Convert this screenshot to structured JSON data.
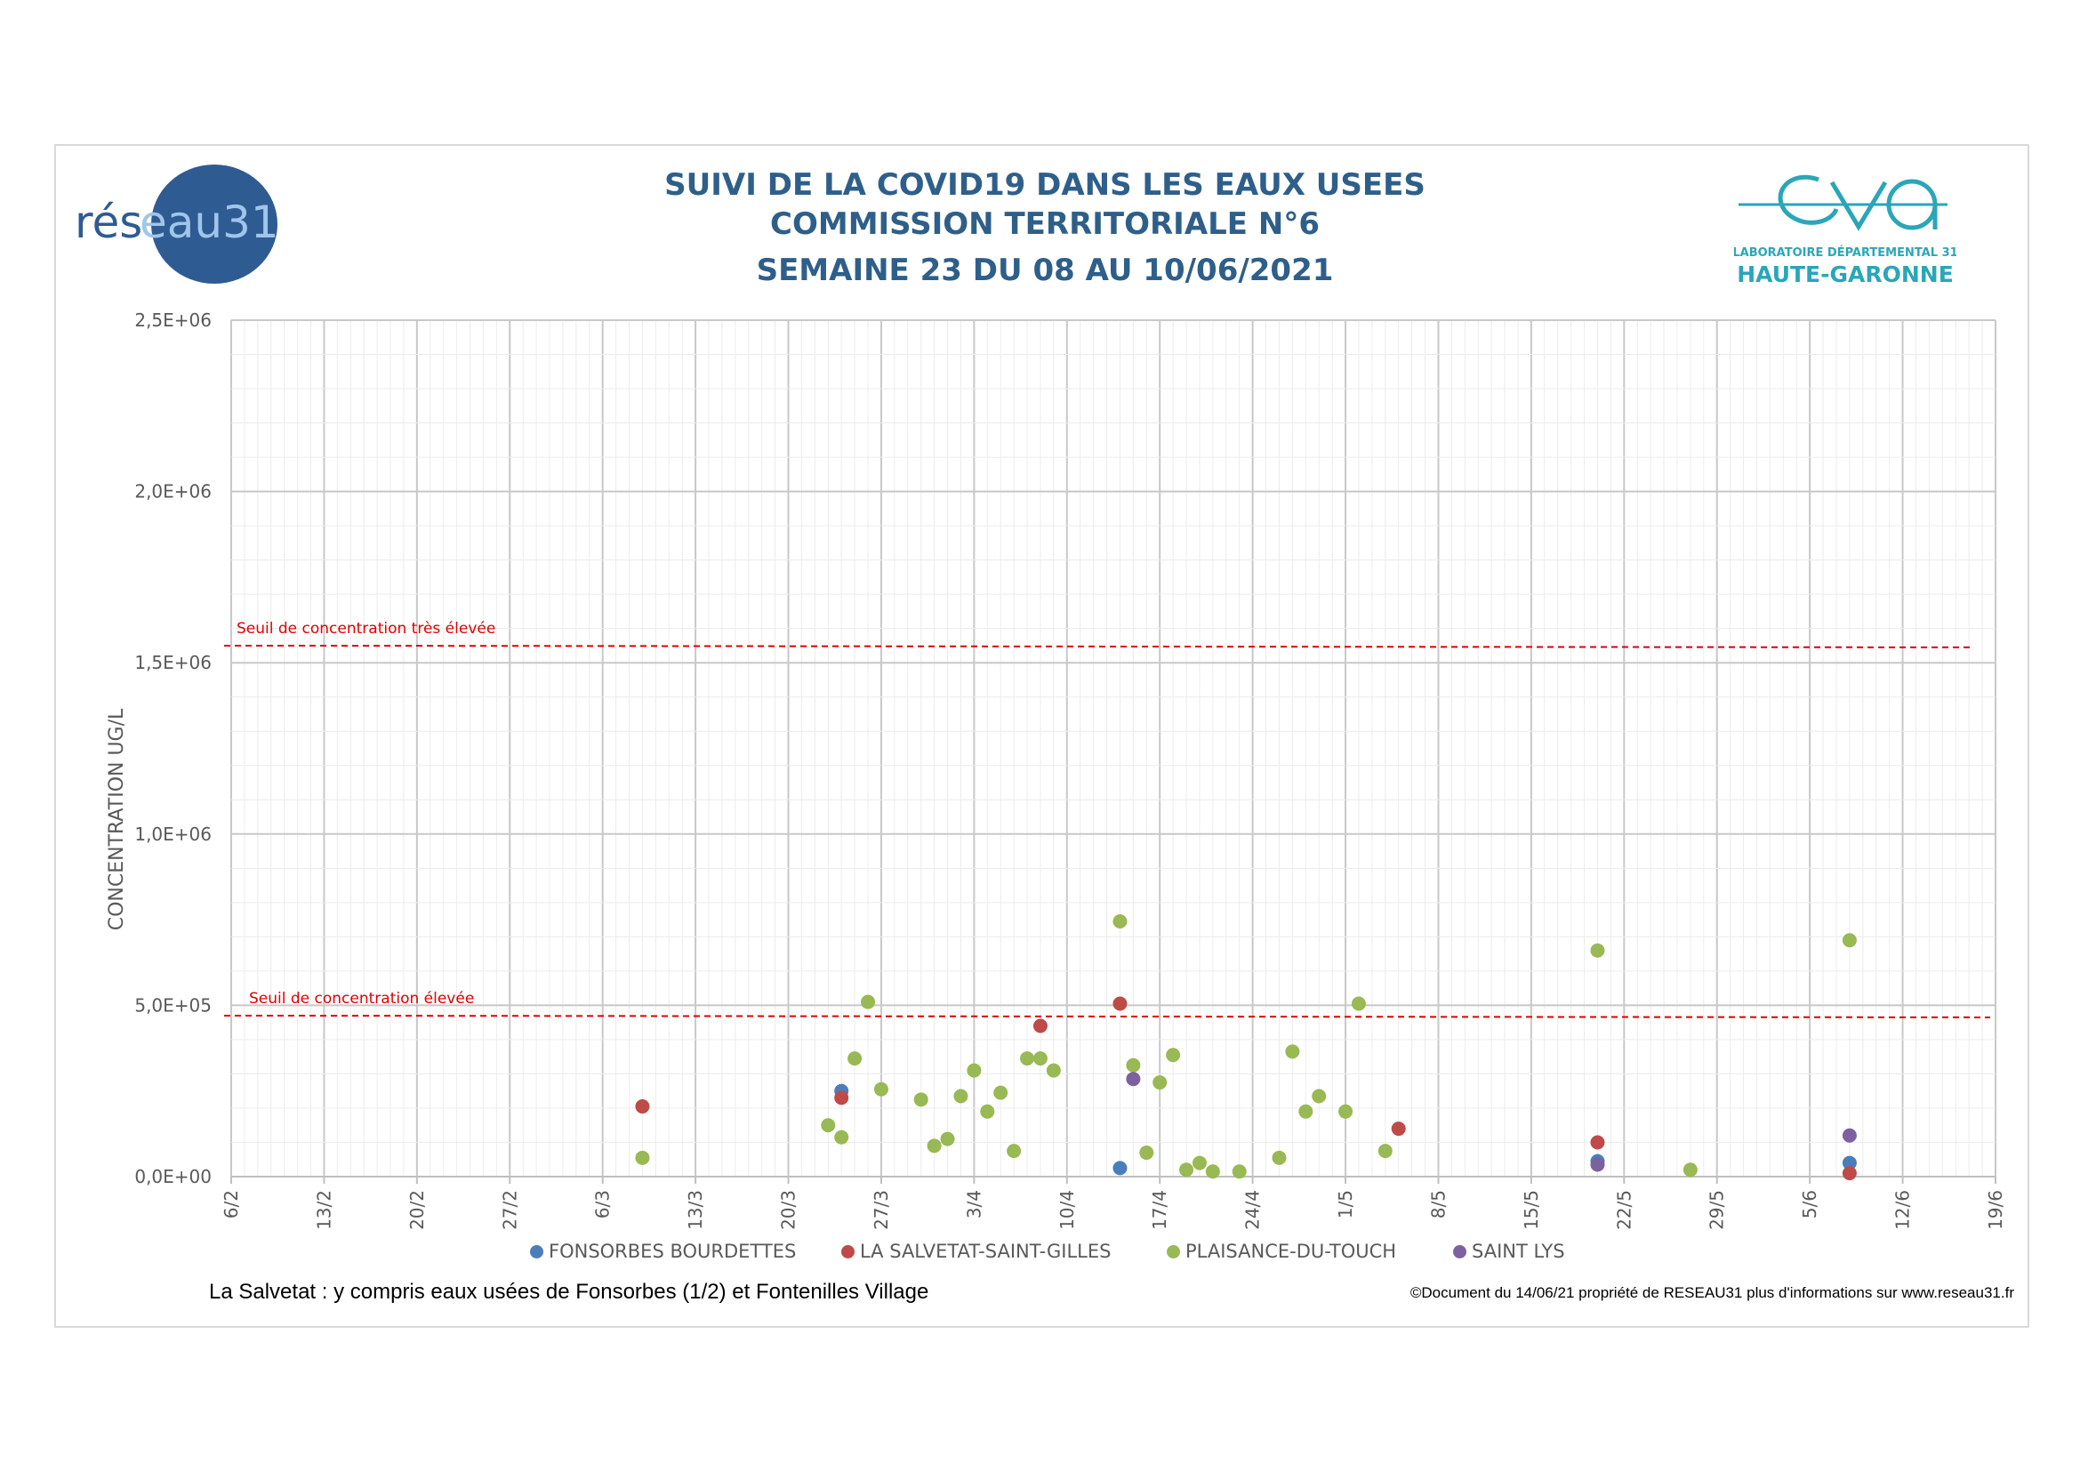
{
  "header": {
    "title_line1": "SUIVI DE LA COVID19 DANS LES EAUX USEES",
    "title_line2": "COMMISSION TERRITORIALE N°6",
    "title_line3": "SEMAINE 23 DU 08 AU 10/06/2021"
  },
  "logos": {
    "left_text_a": "rés",
    "left_text_b": "eau31",
    "right_line1": "LABORATOIRE DÉPARTEMENTAL 31",
    "right_line2": "HAUTE-GARONNE"
  },
  "footer": {
    "note": "La Salvetat : y compris eaux usées de Fonsorbes (1/2) et Fontenilles Village",
    "copyright": "©Document du 14/06/21 propriété de RESEAU31 plus d'informations sur www.reseau31.fr"
  },
  "colors": {
    "fonsorbes": "#4a7ebb",
    "salvetat": "#be4b48",
    "plaisance": "#98b954",
    "saintlys": "#7d60a0",
    "threshold": "#e00000",
    "title": "#2e5f8a"
  },
  "chart_data": {
    "type": "scatter",
    "ylabel": "CONCENTRATION UG/L",
    "xlabel": "",
    "ylim": [
      0,
      2500000
    ],
    "x_axis": "date",
    "xlim": [
      "2021-02-06",
      "2021-06-19"
    ],
    "x_tick_labels": [
      "6/2",
      "13/2",
      "20/2",
      "27/2",
      "6/3",
      "13/3",
      "20/3",
      "27/3",
      "3/4",
      "10/4",
      "17/4",
      "24/4",
      "1/5",
      "8/5",
      "15/5",
      "22/5",
      "29/5",
      "5/6",
      "12/6",
      "19/6"
    ],
    "y_tick_labels": [
      "0,0E+00",
      "5,0E+05",
      "1,0E+06",
      "1,5E+06",
      "2,0E+06",
      "2,5E+06"
    ],
    "y_tick_values": [
      0,
      500000,
      1000000,
      1500000,
      2000000,
      2500000
    ],
    "grid": true,
    "legend_position": "bottom",
    "thresholds": [
      {
        "label": "Seuil de concentration très élevée",
        "value": 1550000
      },
      {
        "label": "Seuil de concentration élevée",
        "value": 470000
      }
    ],
    "series": [
      {
        "name": "FONSORBES BOURDETTES",
        "color": "#4a7ebb",
        "points": [
          [
            "2021-03-24",
            250000
          ],
          [
            "2021-04-14",
            25000
          ],
          [
            "2021-05-20",
            45000
          ],
          [
            "2021-06-08",
            40000
          ]
        ]
      },
      {
        "name": "LA SALVETAT-SAINT-GILLES",
        "color": "#be4b48",
        "points": [
          [
            "2021-03-09",
            205000
          ],
          [
            "2021-03-24",
            230000
          ],
          [
            "2021-04-08",
            440000
          ],
          [
            "2021-04-14",
            505000
          ],
          [
            "2021-05-05",
            140000
          ],
          [
            "2021-05-20",
            100000
          ],
          [
            "2021-06-08",
            10000
          ]
        ]
      },
      {
        "name": "PLAISANCE-DU-TOUCH",
        "color": "#98b954",
        "points": [
          [
            "2021-03-09",
            55000
          ],
          [
            "2021-03-23",
            150000
          ],
          [
            "2021-03-24",
            115000
          ],
          [
            "2021-03-25",
            345000
          ],
          [
            "2021-03-26",
            510000
          ],
          [
            "2021-03-27",
            255000
          ],
          [
            "2021-03-30",
            225000
          ],
          [
            "2021-03-31",
            90000
          ],
          [
            "2021-04-01",
            110000
          ],
          [
            "2021-04-02",
            235000
          ],
          [
            "2021-04-03",
            310000
          ],
          [
            "2021-04-04",
            190000
          ],
          [
            "2021-04-05",
            245000
          ],
          [
            "2021-04-06",
            75000
          ],
          [
            "2021-04-07",
            345000
          ],
          [
            "2021-04-08",
            345000
          ],
          [
            "2021-04-09",
            310000
          ],
          [
            "2021-04-14",
            745000
          ],
          [
            "2021-04-15",
            325000
          ],
          [
            "2021-04-16",
            70000
          ],
          [
            "2021-04-17",
            275000
          ],
          [
            "2021-04-18",
            355000
          ],
          [
            "2021-04-19",
            20000
          ],
          [
            "2021-04-20",
            40000
          ],
          [
            "2021-04-21",
            15000
          ],
          [
            "2021-04-23",
            15000
          ],
          [
            "2021-04-26",
            55000
          ],
          [
            "2021-04-27",
            365000
          ],
          [
            "2021-04-28",
            190000
          ],
          [
            "2021-04-29",
            235000
          ],
          [
            "2021-05-01",
            190000
          ],
          [
            "2021-05-02",
            505000
          ],
          [
            "2021-05-04",
            75000
          ],
          [
            "2021-05-20",
            660000
          ],
          [
            "2021-05-27",
            20000
          ],
          [
            "2021-06-08",
            690000
          ]
        ]
      },
      {
        "name": "SAINT LYS",
        "color": "#7d60a0",
        "points": [
          [
            "2021-04-15",
            285000
          ],
          [
            "2021-05-20",
            35000
          ],
          [
            "2021-06-08",
            120000
          ]
        ]
      }
    ]
  }
}
